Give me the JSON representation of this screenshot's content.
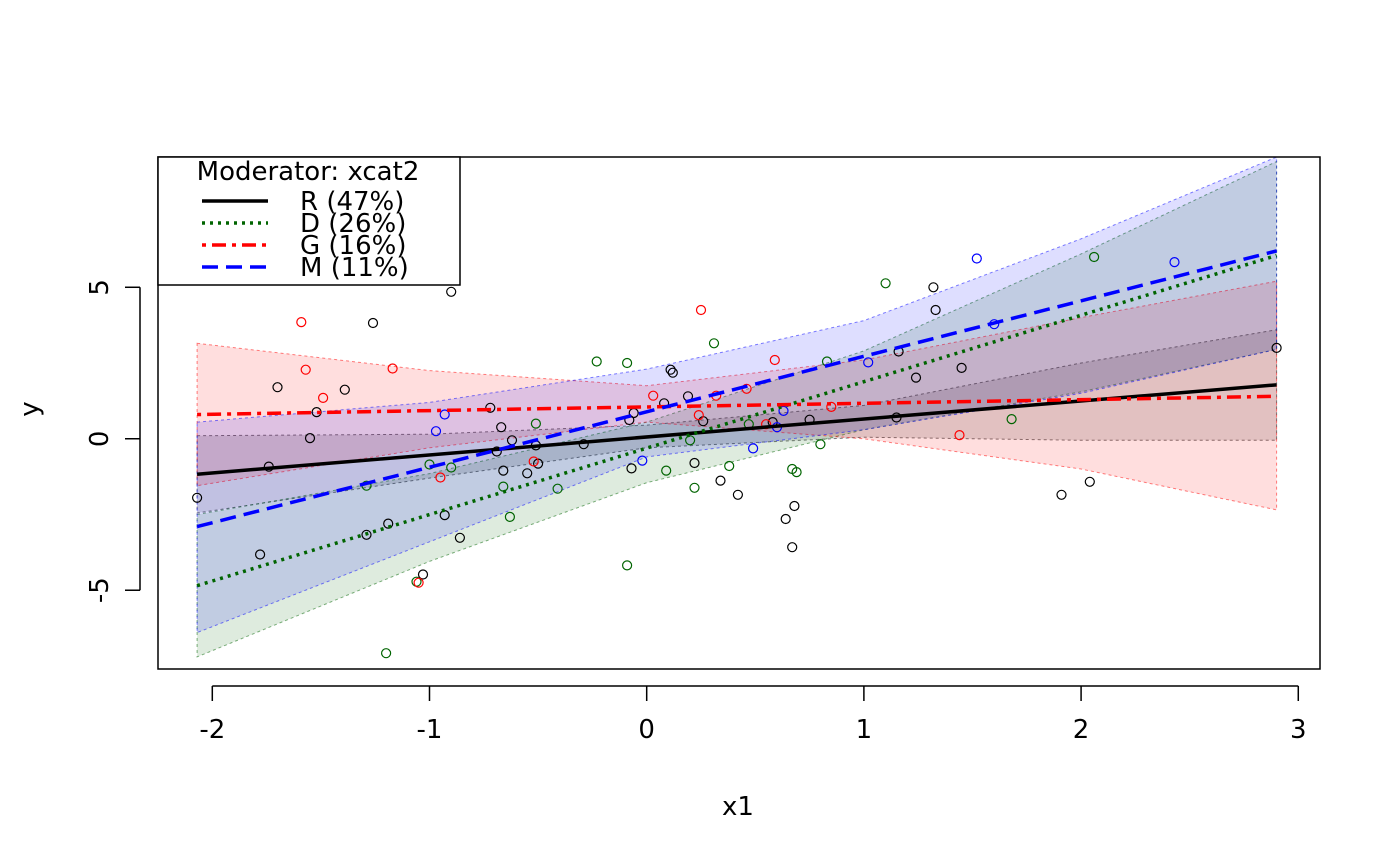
{
  "chart_data": {
    "type": "scatter",
    "title": "",
    "xlabel": "x1",
    "ylabel": "y",
    "xlim": [
      -2.25,
      3.1
    ],
    "ylim": [
      -7.6,
      9.3
    ],
    "xticks": [
      -2,
      -1,
      0,
      1,
      2,
      3
    ],
    "yticks": [
      -5,
      0,
      5
    ],
    "x_tick_labels": [
      "-2",
      "-1",
      "0",
      "1",
      "2",
      "3"
    ],
    "y_tick_labels": [
      "-5",
      "0",
      "5"
    ],
    "grid": false,
    "legend": {
      "title": "Moderator: xcat2",
      "placement": "top-left",
      "entries": [
        "R (47%)",
        "D (26%)",
        "G (16%)",
        "M (11%)"
      ]
    },
    "series": [
      {
        "name": "R (47%)",
        "color": "#000000",
        "line_style": "solid",
        "fit": {
          "x": [
            -2.07,
            2.9
          ],
          "y": [
            -1.17,
            1.78
          ]
        },
        "band": {
          "x": [
            -2.07,
            -1.0,
            0.0,
            1.0,
            2.0,
            2.9
          ],
          "lower": [
            -2.45,
            -1.3,
            -0.3,
            0.05,
            -0.05,
            -0.05
          ],
          "upper": [
            0.1,
            0.15,
            0.45,
            1.1,
            2.5,
            3.6
          ]
        },
        "points": [
          [
            -2.07,
            -1.95
          ],
          [
            -1.78,
            -3.82
          ],
          [
            -1.74,
            -0.92
          ],
          [
            -1.7,
            1.7
          ],
          [
            -1.55,
            0.02
          ],
          [
            -1.52,
            0.88
          ],
          [
            -1.39,
            1.62
          ],
          [
            -1.29,
            -3.17
          ],
          [
            -1.26,
            3.82
          ],
          [
            -1.19,
            -2.8
          ],
          [
            -1.03,
            -4.48
          ],
          [
            -0.93,
            -2.52
          ],
          [
            -0.9,
            4.85
          ],
          [
            -0.86,
            -3.27
          ],
          [
            -0.72,
            1.02
          ],
          [
            -0.69,
            -0.42
          ],
          [
            -0.67,
            0.38
          ],
          [
            -0.66,
            -1.05
          ],
          [
            -0.62,
            -0.05
          ],
          [
            -0.55,
            -1.14
          ],
          [
            -0.51,
            -0.22
          ],
          [
            -0.5,
            -0.82
          ],
          [
            -0.29,
            -0.18
          ],
          [
            -0.08,
            0.62
          ],
          [
            -0.07,
            -0.98
          ],
          [
            -0.06,
            0.85
          ],
          [
            0.08,
            1.17
          ],
          [
            0.11,
            2.28
          ],
          [
            0.12,
            2.18
          ],
          [
            0.19,
            1.4
          ],
          [
            0.22,
            -0.8
          ],
          [
            0.26,
            0.58
          ],
          [
            0.34,
            -1.38
          ],
          [
            0.42,
            -1.85
          ],
          [
            0.58,
            0.55
          ],
          [
            0.64,
            -2.65
          ],
          [
            0.67,
            -3.58
          ],
          [
            0.68,
            -2.22
          ],
          [
            0.75,
            0.63
          ],
          [
            1.15,
            0.7
          ],
          [
            1.16,
            2.88
          ],
          [
            1.24,
            2.02
          ],
          [
            1.32,
            5.0
          ],
          [
            1.33,
            4.25
          ],
          [
            1.45,
            2.34
          ],
          [
            1.91,
            -1.85
          ],
          [
            2.04,
            -1.42
          ],
          [
            2.9,
            3.0
          ]
        ]
      },
      {
        "name": "D (26%)",
        "color": "#006400",
        "line_style": "dotted",
        "fit": {
          "x": [
            -2.07,
            2.9
          ],
          "y": [
            -4.85,
            6.05
          ]
        },
        "band": {
          "x": [
            -2.07,
            -1.0,
            0.0,
            1.0,
            2.0,
            2.9
          ],
          "lower": [
            -7.2,
            -4.05,
            -1.45,
            0.3,
            1.55,
            2.95
          ],
          "upper": [
            -2.5,
            -1.15,
            0.55,
            2.9,
            6.1,
            9.15
          ]
        },
        "points": [
          [
            -1.29,
            -1.55
          ],
          [
            -1.2,
            -7.08
          ],
          [
            -1.06,
            -4.72
          ],
          [
            -1.0,
            -0.85
          ],
          [
            -0.9,
            -0.95
          ],
          [
            -0.66,
            -1.58
          ],
          [
            -0.63,
            -2.58
          ],
          [
            -0.51,
            0.5
          ],
          [
            -0.41,
            -1.65
          ],
          [
            -0.23,
            2.55
          ],
          [
            -0.09,
            2.5
          ],
          [
            -0.09,
            -4.18
          ],
          [
            0.09,
            -1.05
          ],
          [
            0.2,
            -0.05
          ],
          [
            0.22,
            -1.62
          ],
          [
            0.31,
            3.15
          ],
          [
            0.38,
            -0.9
          ],
          [
            0.47,
            0.48
          ],
          [
            0.67,
            -1.0
          ],
          [
            0.69,
            -1.1
          ],
          [
            0.8,
            -0.18
          ],
          [
            0.83,
            2.55
          ],
          [
            1.1,
            5.13
          ],
          [
            1.68,
            0.65
          ],
          [
            2.06,
            6.0
          ]
        ]
      },
      {
        "name": "G (16%)",
        "color": "#ff0000",
        "line_style": "dotdash",
        "fit": {
          "x": [
            -2.07,
            2.9
          ],
          "y": [
            0.8,
            1.4
          ]
        },
        "band": {
          "x": [
            -2.07,
            -1.0,
            0.0,
            1.0,
            2.0,
            2.9
          ],
          "lower": [
            -1.55,
            -0.3,
            0.55,
            0.0,
            -1.0,
            -2.35
          ],
          "upper": [
            3.15,
            2.25,
            1.75,
            2.6,
            4.0,
            5.2
          ]
        },
        "points": [
          [
            -1.59,
            3.85
          ],
          [
            -1.57,
            2.28
          ],
          [
            -1.49,
            1.35
          ],
          [
            -1.17,
            2.32
          ],
          [
            -1.05,
            -4.75
          ],
          [
            -0.95,
            -1.28
          ],
          [
            0.03,
            1.42
          ],
          [
            0.24,
            0.78
          ],
          [
            0.25,
            4.25
          ],
          [
            0.32,
            1.42
          ],
          [
            0.46,
            1.65
          ],
          [
            0.55,
            0.48
          ],
          [
            0.59,
            2.6
          ],
          [
            0.85,
            1.05
          ],
          [
            1.44,
            0.12
          ],
          [
            -0.52,
            -0.75
          ]
        ]
      },
      {
        "name": "M (11%)",
        "color": "#0000ff",
        "line_style": "dashed",
        "fit": {
          "x": [
            -2.07,
            2.9
          ],
          "y": [
            -2.9,
            6.2
          ]
        },
        "band": {
          "x": [
            -2.07,
            -1.0,
            0.0,
            1.0,
            2.0,
            2.9
          ],
          "lower": [
            -6.4,
            -3.4,
            -0.6,
            0.3,
            1.5,
            2.95
          ],
          "upper": [
            0.55,
            1.2,
            2.3,
            3.9,
            6.6,
            9.3
          ]
        },
        "points": [
          [
            -0.97,
            0.25
          ],
          [
            -0.93,
            0.8
          ],
          [
            -0.02,
            -0.72
          ],
          [
            0.49,
            -0.32
          ],
          [
            0.6,
            0.38
          ],
          [
            0.63,
            0.92
          ],
          [
            1.02,
            2.52
          ],
          [
            1.52,
            5.95
          ],
          [
            1.6,
            3.78
          ],
          [
            2.43,
            5.83
          ]
        ]
      }
    ]
  }
}
